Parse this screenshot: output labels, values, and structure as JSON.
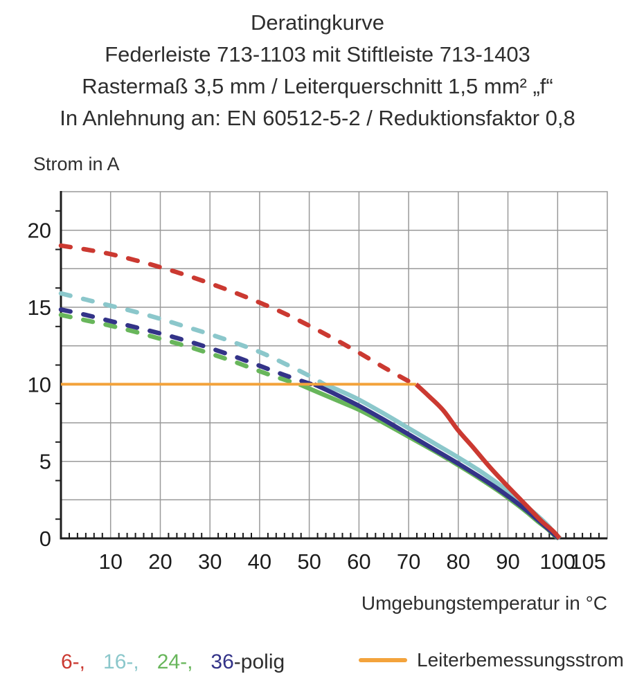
{
  "header": {
    "line1": "Deratingkurve",
    "line2": "Federleiste 713-1103 mit Stiftleiste 713-1403",
    "line3": "Rastermaß 3,5 mm / Leiterquerschnitt 1,5 mm² „f“",
    "line4": "In Anlehnung an: EN 60512-5-2 / Reduktionsfaktor 0,8"
  },
  "colors": {
    "red": "#cb3931",
    "cyan": "#8bc7cb",
    "green": "#68b65b",
    "navy": "#333388",
    "orange": "#f3a33c",
    "grid": "#999999",
    "axis": "#1c1c1c",
    "text": "#2e2e2e"
  },
  "legend": {
    "poles": [
      {
        "text": "6-,",
        "color": "red"
      },
      {
        "text": "16-,",
        "color": "cyan"
      },
      {
        "text": "24-,",
        "color": "green"
      },
      {
        "text": "36",
        "color": "navy"
      },
      {
        "text": "-polig",
        "color": "text"
      }
    ],
    "rated_label": "Leiterbemessungsstrom"
  },
  "chart_data": {
    "type": "line",
    "title": "Deratingkurve",
    "xlabel": "Umgebungstemperatur in °C",
    "ylabel": "Strom in A",
    "xlim": [
      0,
      110
    ],
    "ylim": [
      0,
      22.5
    ],
    "grid": true,
    "grid_step_x": 10,
    "grid_step_y": 2.5,
    "x_ticks": [
      10,
      20,
      30,
      40,
      50,
      60,
      70,
      80,
      90,
      100,
      105
    ],
    "y_ticks": [
      0,
      5,
      10,
      15,
      20
    ],
    "legend_position": "bottom",
    "series": [
      {
        "name": "6-polig",
        "color_key": "red",
        "dashed": [
          [
            0,
            19.0
          ],
          [
            5,
            18.75
          ],
          [
            10,
            18.45
          ],
          [
            15,
            18.05
          ],
          [
            20,
            17.6
          ],
          [
            25,
            17.1
          ],
          [
            30,
            16.55
          ],
          [
            35,
            15.95
          ],
          [
            40,
            15.3
          ],
          [
            45,
            14.6
          ],
          [
            50,
            13.8
          ],
          [
            55,
            12.95
          ],
          [
            60,
            12.05
          ],
          [
            65,
            11.1
          ],
          [
            70,
            10.2
          ],
          [
            71.5,
            10.0
          ]
        ],
        "solid": [
          [
            71.5,
            10.0
          ],
          [
            74,
            9.25
          ],
          [
            77,
            8.3
          ],
          [
            80,
            7.0
          ],
          [
            83,
            5.9
          ],
          [
            86,
            4.75
          ],
          [
            89,
            3.7
          ],
          [
            92,
            2.7
          ],
          [
            95,
            1.7
          ],
          [
            97,
            1.05
          ],
          [
            99,
            0.5
          ],
          [
            100.4,
            0
          ]
        ]
      },
      {
        "name": "16-polig",
        "color_key": "cyan",
        "dashed": [
          [
            0,
            15.9
          ],
          [
            5,
            15.5
          ],
          [
            10,
            15.1
          ],
          [
            15,
            14.7
          ],
          [
            20,
            14.25
          ],
          [
            25,
            13.75
          ],
          [
            30,
            13.25
          ],
          [
            35,
            12.7
          ],
          [
            40,
            12.1
          ],
          [
            45,
            11.35
          ],
          [
            50,
            10.55
          ],
          [
            53,
            10.0
          ]
        ],
        "solid": [
          [
            53,
            10.0
          ],
          [
            56,
            9.6
          ],
          [
            60,
            9.0
          ],
          [
            65,
            8.1
          ],
          [
            70,
            7.15
          ],
          [
            75,
            6.2
          ],
          [
            80,
            5.25
          ],
          [
            84,
            4.45
          ],
          [
            88,
            3.55
          ],
          [
            91,
            2.8
          ],
          [
            94,
            2.0
          ],
          [
            96,
            1.45
          ],
          [
            98,
            0.85
          ],
          [
            99.6,
            0.25
          ],
          [
            100.5,
            0
          ]
        ]
      },
      {
        "name": "24-polig",
        "color_key": "green",
        "dashed": [
          [
            0,
            14.5
          ],
          [
            5,
            14.15
          ],
          [
            10,
            13.8
          ],
          [
            15,
            13.4
          ],
          [
            20,
            12.95
          ],
          [
            25,
            12.5
          ],
          [
            30,
            12.0
          ],
          [
            35,
            11.45
          ],
          [
            40,
            10.85
          ],
          [
            44,
            10.4
          ],
          [
            48,
            10.0
          ]
        ],
        "solid": [
          [
            48,
            10.0
          ],
          [
            52,
            9.45
          ],
          [
            56,
            8.9
          ],
          [
            60,
            8.35
          ],
          [
            65,
            7.5
          ],
          [
            70,
            6.6
          ],
          [
            75,
            5.7
          ],
          [
            80,
            4.75
          ],
          [
            84,
            3.95
          ],
          [
            88,
            3.1
          ],
          [
            91,
            2.4
          ],
          [
            94,
            1.65
          ],
          [
            96,
            1.1
          ],
          [
            98,
            0.6
          ],
          [
            99.4,
            0.18
          ],
          [
            100.2,
            0
          ]
        ]
      },
      {
        "name": "36-polig",
        "color_key": "navy",
        "dashed": [
          [
            0,
            14.85
          ],
          [
            5,
            14.5
          ],
          [
            10,
            14.1
          ],
          [
            15,
            13.7
          ],
          [
            20,
            13.3
          ],
          [
            25,
            12.85
          ],
          [
            30,
            12.35
          ],
          [
            35,
            11.8
          ],
          [
            40,
            11.2
          ],
          [
            45,
            10.6
          ],
          [
            50,
            10.05
          ],
          [
            51,
            10.0
          ]
        ],
        "solid": [
          [
            51,
            10.0
          ],
          [
            55,
            9.4
          ],
          [
            60,
            8.6
          ],
          [
            65,
            7.7
          ],
          [
            70,
            6.75
          ],
          [
            75,
            5.8
          ],
          [
            80,
            4.85
          ],
          [
            84,
            4.05
          ],
          [
            88,
            3.2
          ],
          [
            91,
            2.5
          ],
          [
            94,
            1.75
          ],
          [
            96,
            1.2
          ],
          [
            98,
            0.65
          ],
          [
            99.5,
            0.2
          ],
          [
            100.3,
            0
          ]
        ]
      },
      {
        "name": "Leiterbemessungsstrom",
        "color_key": "orange",
        "width": 4,
        "solid": [
          [
            0,
            10.0
          ],
          [
            71.5,
            10.0
          ]
        ]
      }
    ]
  }
}
